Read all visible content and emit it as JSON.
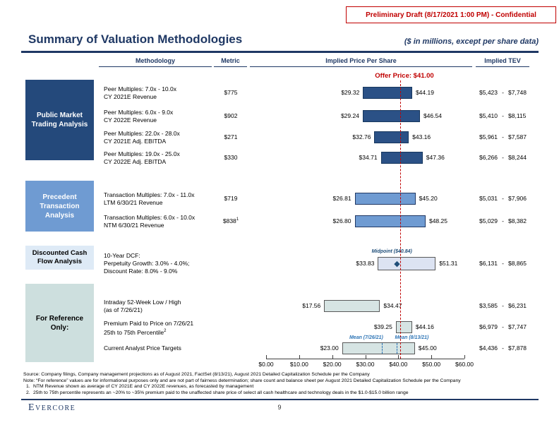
{
  "banner": {
    "text": "Preliminary Draft (8/17/2021 1:00 PM) - Confidential",
    "color": "#C00000"
  },
  "header": {
    "title": "Summary of Valuation Methodologies",
    "subtitle": "($ in millions, except per share data)",
    "accent_color": "#1F3864"
  },
  "table_headers": {
    "methodology": "Methodology",
    "metric": "Metric",
    "price_per_share": "Implied Price Per Share",
    "implied_tev": "Implied TEV"
  },
  "sections": [
    {
      "label": "Public Market Trading Analysis",
      "bg": "#24497B",
      "fg": "#FFFFFF"
    },
    {
      "label": "Precedent Transaction Analysis",
      "bg": "#6F9BD2",
      "fg": "#FFFFFF"
    },
    {
      "label": "Discounted Cash Flow Analysis",
      "bg": "#DEEAF6",
      "fg": "#000000"
    },
    {
      "label": "For Reference Only:",
      "bg": "#CDDFDE",
      "fg": "#000000"
    }
  ],
  "chart_data": {
    "type": "bar",
    "variant": "football-field-horizontal-range",
    "title": "Implied Price Per Share",
    "xlabel": "Implied Price Per Share ($)",
    "x_axis": {
      "min": 0,
      "max": 60,
      "tick_labels": [
        "$0.00",
        "$10.00",
        "$20.00",
        "$30.00",
        "$40.00",
        "$50.00",
        "$60.00"
      ]
    },
    "offer_price": {
      "value": 41.0,
      "label": "Offer Price: $41.00"
    },
    "tev_separator": "-",
    "rows": [
      {
        "section": "Public Market Trading Analysis",
        "method_lines": [
          "Peer Multiples: 7.0x - 10.0x",
          "CY 2021E Revenue"
        ],
        "metric": "$775",
        "metric_sup": "",
        "line_sup": "",
        "low": 29.32,
        "high": 44.19,
        "low_label": "$29.32",
        "high_label": "$44.19",
        "tev_low": "$5,423",
        "tev_high": "$7,748",
        "style": "navy"
      },
      {
        "section": "Public Market Trading Analysis",
        "method_lines": [
          "Peer Multiples: 6.0x - 9.0x",
          "CY 2022E Revenue"
        ],
        "metric": "$902",
        "metric_sup": "",
        "line_sup": "",
        "low": 29.24,
        "high": 46.54,
        "low_label": "$29.24",
        "high_label": "$46.54",
        "tev_low": "$5,410",
        "tev_high": "$8,115",
        "style": "navy"
      },
      {
        "section": "Public Market Trading Analysis",
        "method_lines": [
          "Peer Multiples: 22.0x - 28.0x",
          "CY 2021E Adj. EBITDA"
        ],
        "metric": "$271",
        "metric_sup": "",
        "line_sup": "",
        "low": 32.76,
        "high": 43.16,
        "low_label": "$32.76",
        "high_label": "$43.16",
        "tev_low": "$5,961",
        "tev_high": "$7,587",
        "style": "navy"
      },
      {
        "section": "Public Market Trading Analysis",
        "method_lines": [
          "Peer Multiples: 19.0x - 25.0x",
          "CY 2022E Adj. EBITDA"
        ],
        "metric": "$330",
        "metric_sup": "",
        "line_sup": "",
        "low": 34.71,
        "high": 47.36,
        "low_label": "$34.71",
        "high_label": "$47.36",
        "tev_low": "$6,266",
        "tev_high": "$8,244",
        "style": "navy"
      },
      {
        "section": "Precedent Transaction Analysis",
        "method_lines": [
          "Transaction Multiples: 7.0x - 11.0x",
          "LTM 6/30/21 Revenue"
        ],
        "metric": "$719",
        "metric_sup": "",
        "line_sup": "",
        "low": 26.81,
        "high": 45.2,
        "low_label": "$26.81",
        "high_label": "$45.20",
        "tev_low": "$5,031",
        "tev_high": "$7,906",
        "style": "blue"
      },
      {
        "section": "Precedent Transaction Analysis",
        "method_lines": [
          "Transaction Multiples: 6.0x - 10.0x",
          "NTM 6/30/21 Revenue"
        ],
        "metric": "$838",
        "metric_sup": "1",
        "line_sup": "",
        "low": 26.8,
        "high": 48.25,
        "low_label": "$26.80",
        "high_label": "$48.25",
        "tev_low": "$5,029",
        "tev_high": "$8,382",
        "style": "blue"
      },
      {
        "section": "Discounted Cash Flow Analysis",
        "method_lines": [
          "10-Year DCF:",
          "Perpetuity Growth: 3.0% - 4.0%;",
          "Discount Rate: 8.0% - 9.0%"
        ],
        "metric": "",
        "metric_sup": "",
        "line_sup": "",
        "low": 33.83,
        "high": 51.31,
        "low_label": "$33.83",
        "high_label": "$51.31",
        "tev_low": "$6,131",
        "tev_high": "$8,865",
        "style": "lavender",
        "midpoint": {
          "value": 40.84,
          "label": "Midpoint ($40.84)"
        }
      },
      {
        "section": "For Reference Only:",
        "method_lines": [
          "Intraday 52-Week Low / High",
          "(as of 7/26/21)"
        ],
        "metric": "",
        "metric_sup": "",
        "line_sup": "",
        "low": 17.56,
        "high": 34.47,
        "low_label": "$17.56",
        "high_label": "$34.47",
        "tev_low": "$3,585",
        "tev_high": "$6,231",
        "style": "teal"
      },
      {
        "section": "For Reference Only:",
        "method_lines": [
          "Premium Paid to Price on 7/26/21",
          "25th to 75th Percentile"
        ],
        "metric": "",
        "metric_sup": "",
        "line_sup": "2",
        "low": 39.25,
        "high": 44.16,
        "low_label": "$39.25",
        "high_label": "$44.16",
        "tev_low": "$6,979",
        "tev_high": "$7,747",
        "style": "teal"
      },
      {
        "section": "For Reference Only:",
        "method_lines": [
          "Current Analyst Price Targets"
        ],
        "metric": "",
        "metric_sup": "",
        "line_sup": "",
        "low": 23.0,
        "high": 45.0,
        "low_label": "$23.00",
        "high_label": "$45.00",
        "tev_low": "$4,436",
        "tev_high": "$7,878",
        "style": "teal",
        "means": [
          {
            "value": 35.0,
            "label": "Mean (7/26/21)"
          },
          {
            "value": 39.6,
            "label": "Mean (8/13/21)"
          }
        ]
      }
    ]
  },
  "footnotes": [
    "Source: Company filings, Company management projections as of August 2021, FactSet (8/13/21), August 2021 Detailed Capitalization Schedule per the Company",
    "Note: “For reference” values are for informational purposes only and are not part of fairness determination; share count and balance sheet per August 2021 Detailed Capitalization Schedule per the Company"
  ],
  "numbered_notes": [
    {
      "num": "1.",
      "text": "NTM Revenue shown as average of CY 2021E and CY 2022E revenues, as forecasted by management"
    },
    {
      "num": "2.",
      "text": "25th to 75th percentile represents an ~20% to ~35% premium paid to the unaffected share price of select all cash healthcare and technology deals in the $1.0-$15.0 billion range"
    }
  ],
  "footer": {
    "logo": "Evercore",
    "page": "9"
  }
}
